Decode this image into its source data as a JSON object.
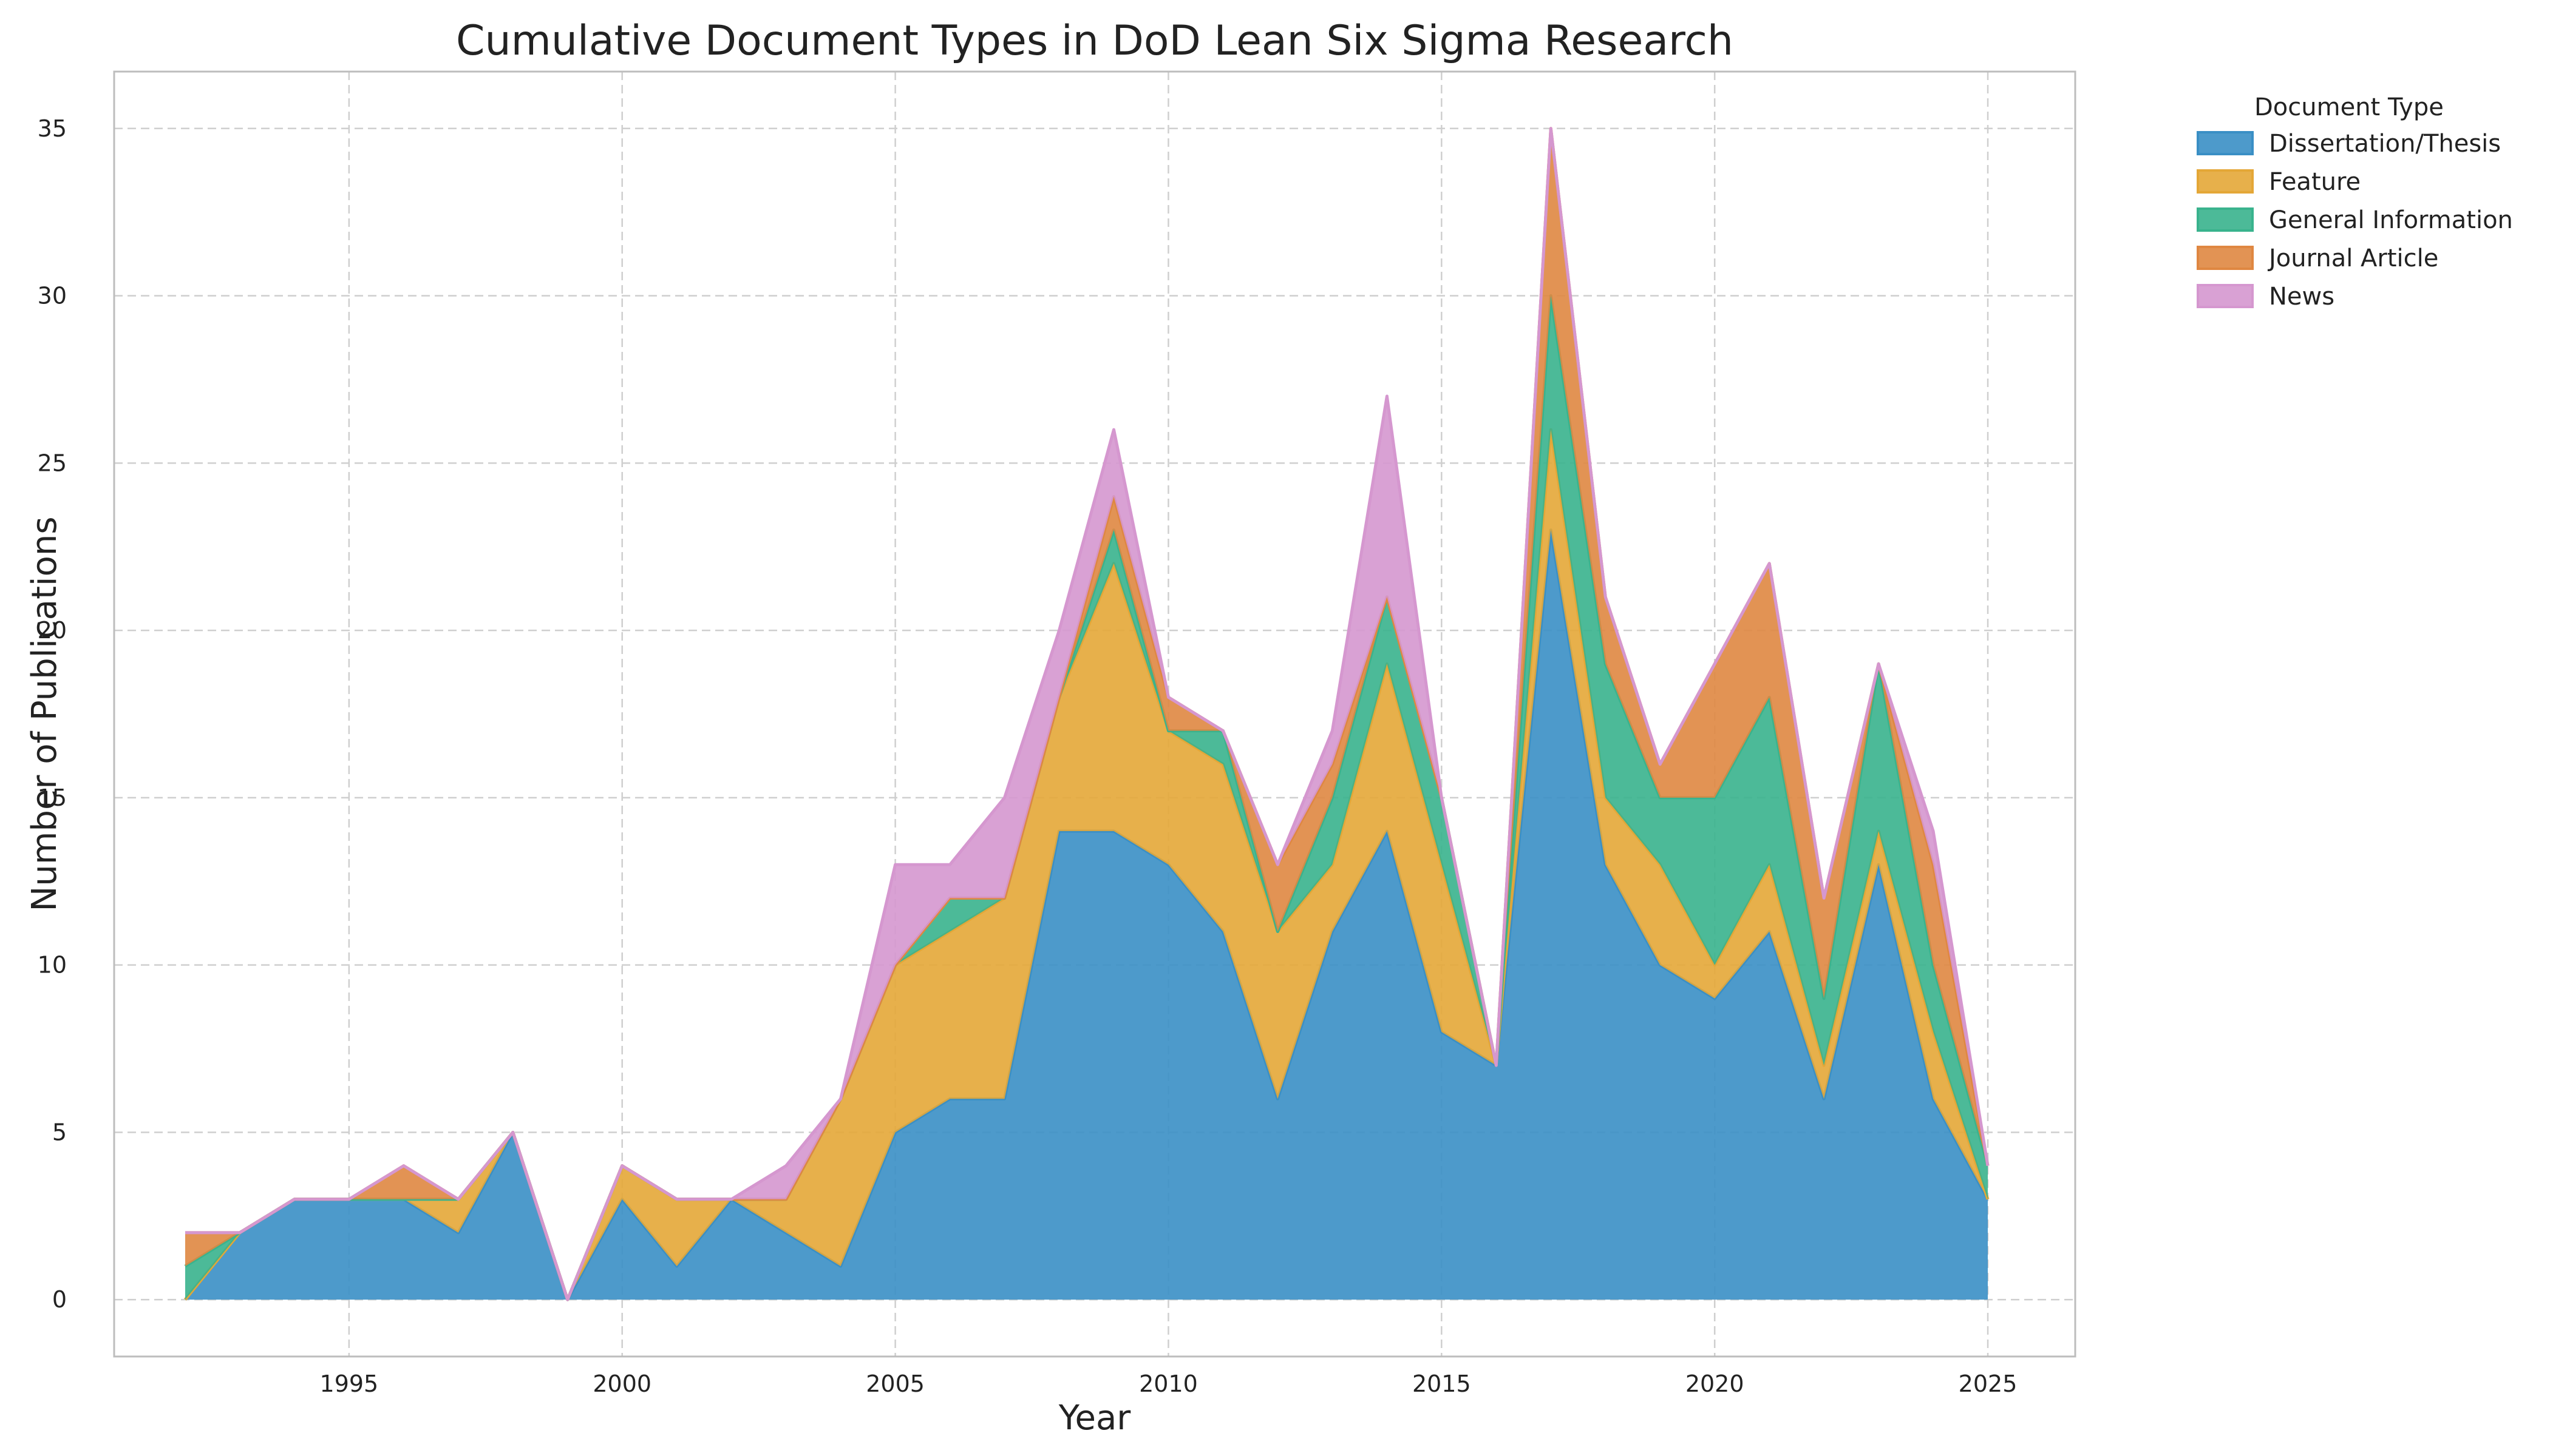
{
  "chart_data": {
    "type": "area",
    "stacked": true,
    "title": "Cumulative Document Types in DoD Lean Six Sigma Research",
    "xlabel": "Year",
    "ylabel": "Number of Publications",
    "xlim": [
      1990.7,
      2026.6
    ],
    "ylim": [
      -1.7,
      36.7
    ],
    "xticks": [
      1995,
      2000,
      2005,
      2010,
      2015,
      2020,
      2025
    ],
    "yticks": [
      0,
      5,
      10,
      15,
      20,
      25,
      30,
      35
    ],
    "grid": true,
    "legend": {
      "title": "Document Type",
      "placement": "outside-top-right"
    },
    "x": [
      1992,
      1993,
      1994,
      1995,
      1996,
      1997,
      1998,
      1999,
      2000,
      2001,
      2002,
      2003,
      2004,
      2005,
      2006,
      2007,
      2008,
      2009,
      2010,
      2011,
      2012,
      2013,
      2014,
      2015,
      2016,
      2017,
      2018,
      2019,
      2020,
      2021,
      2022,
      2023,
      2024,
      2025
    ],
    "series": [
      {
        "name": "Dissertation/Thesis",
        "color": "#3a8fc5",
        "values": [
          0,
          2,
          3,
          3,
          3,
          2,
          5,
          0,
          3,
          1,
          3,
          2,
          1,
          5,
          6,
          6,
          14,
          14,
          13,
          11,
          6,
          11,
          14,
          8,
          7,
          23,
          13,
          10,
          9,
          11,
          6,
          13,
          6,
          3
        ]
      },
      {
        "name": "Feature",
        "color": "#e4a737",
        "values": [
          0,
          0,
          0,
          0,
          0,
          1,
          0,
          0,
          1,
          2,
          0,
          1,
          5,
          5,
          5,
          6,
          4,
          8,
          4,
          5,
          5,
          2,
          5,
          5,
          0,
          3,
          2,
          3,
          1,
          2,
          1,
          1,
          2,
          0
        ]
      },
      {
        "name": "General Information",
        "color": "#39b38d",
        "values": [
          1,
          0,
          0,
          0,
          0,
          0,
          0,
          0,
          0,
          0,
          0,
          0,
          0,
          0,
          1,
          0,
          0,
          1,
          0,
          1,
          0,
          2,
          2,
          2,
          0,
          4,
          4,
          2,
          5,
          5,
          2,
          5,
          2,
          1
        ]
      },
      {
        "name": "Journal Article",
        "color": "#df8741",
        "values": [
          1,
          0,
          0,
          0,
          1,
          0,
          0,
          0,
          0,
          0,
          0,
          0,
          0,
          0,
          0,
          0,
          0,
          1,
          1,
          0,
          2,
          1,
          0,
          0,
          0,
          5,
          2,
          1,
          4,
          4,
          3,
          0,
          3,
          0
        ]
      },
      {
        "name": "News",
        "color": "#d597cf",
        "values": [
          0,
          0,
          0,
          0,
          0,
          0,
          0,
          0,
          0,
          0,
          0,
          1,
          0,
          3,
          1,
          3,
          2,
          2,
          0,
          0,
          0,
          1,
          6,
          0,
          0,
          0,
          0,
          0,
          0,
          0,
          0,
          0,
          1,
          0
        ]
      }
    ]
  }
}
